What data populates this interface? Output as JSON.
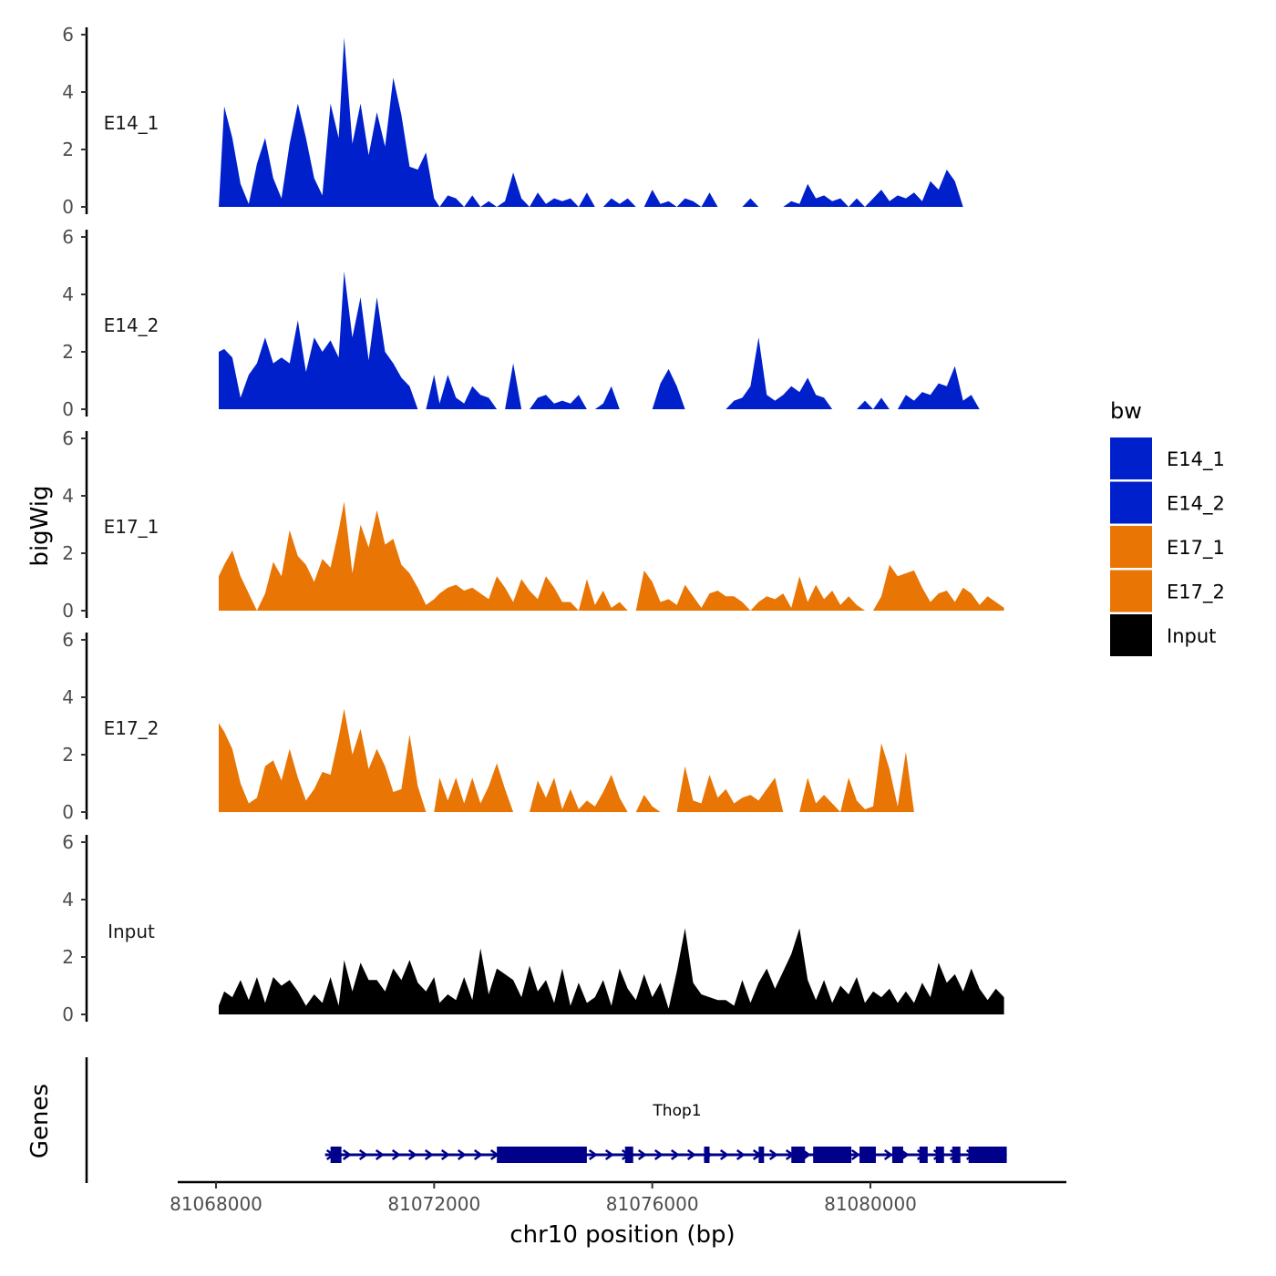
{
  "chart_data": {
    "type": "area",
    "chromosome": "chr10",
    "xlabel": "chr10 position (bp)",
    "ylabel": "bigWig",
    "genes_axis_label": "Genes",
    "xlim": [
      81067700,
      81083600
    ],
    "x_ticks": [
      81068000,
      81072000,
      81076000,
      81080000
    ],
    "x_tick_labels": [
      "81068000",
      "81072000",
      "81076000",
      "81080000"
    ],
    "ylim": [
      0,
      6
    ],
    "y_ticks": [
      0,
      2,
      4,
      6
    ],
    "y_tick_labels": [
      "0",
      "2",
      "4",
      "6"
    ],
    "legend": {
      "title": "bw",
      "entries": [
        {
          "label": "E14_1",
          "color": "#0020CC"
        },
        {
          "label": "E14_2",
          "color": "#0020CC"
        },
        {
          "label": "E17_1",
          "color": "#E87504"
        },
        {
          "label": "E17_2",
          "color": "#E87504"
        },
        {
          "label": "Input",
          "color": "#000000"
        }
      ]
    },
    "series": [
      {
        "name": "E14_1",
        "color": "#0020CC",
        "x": [
          81068050,
          81068150,
          81068300,
          81068450,
          81068600,
          81068750,
          81068900,
          81069050,
          81069200,
          81069350,
          81069500,
          81069650,
          81069800,
          81069950,
          81070100,
          81070250,
          81070350,
          81070500,
          81070650,
          81070800,
          81070950,
          81071100,
          81071250,
          81071400,
          81071550,
          81071700,
          81071850,
          81072000,
          81072100,
          81072250,
          81072400,
          81072550,
          81072700,
          81072850,
          81073000,
          81073150,
          81073300,
          81073450,
          81073600,
          81073750,
          81073900,
          81074050,
          81074200,
          81074350,
          81074500,
          81074650,
          81074800,
          81074950,
          81075100,
          81075250,
          81075400,
          81075550,
          81075700,
          81075850,
          81076000,
          81076150,
          81076300,
          81076450,
          81076600,
          81076750,
          81076900,
          81077050,
          81077200,
          81077350,
          81077500,
          81077650,
          81077800,
          81077950,
          81078100,
          81078250,
          81078400,
          81078550,
          81078700,
          81078850,
          81079000,
          81079150,
          81079300,
          81079450,
          81079600,
          81079750,
          81079900,
          81080050,
          81080200,
          81080350,
          81080500,
          81080650,
          81080800,
          81080950,
          81081100,
          81081250,
          81081400,
          81081550,
          81081700,
          81081850,
          81082000,
          81082150,
          81082300,
          81082450
        ],
        "y": [
          0,
          3.5,
          2.4,
          0.8,
          0.1,
          1.5,
          2.4,
          1.0,
          0.3,
          2.2,
          3.6,
          2.4,
          1.0,
          0.4,
          3.6,
          2.4,
          5.9,
          2.2,
          3.6,
          1.8,
          3.3,
          2.1,
          4.5,
          3.2,
          1.4,
          1.3,
          1.9,
          0.3,
          0,
          0.4,
          0.3,
          0,
          0.4,
          0,
          0.2,
          0,
          0.2,
          1.2,
          0.3,
          0,
          0.5,
          0.1,
          0.3,
          0.2,
          0.3,
          0,
          0.5,
          0,
          0,
          0.3,
          0.1,
          0.3,
          0,
          0,
          0.6,
          0.1,
          0.2,
          0,
          0.3,
          0.2,
          0,
          0.5,
          0,
          0,
          0,
          0,
          0.3,
          0,
          0,
          0,
          0,
          0.2,
          0.1,
          0.8,
          0.3,
          0.4,
          0.2,
          0.3,
          0,
          0.3,
          0,
          0.3,
          0.6,
          0.2,
          0.4,
          0.3,
          0.5,
          0.2,
          0.9,
          0.6,
          1.3,
          0.9,
          0,
          0,
          0,
          0,
          0,
          0
        ]
      },
      {
        "name": "E14_2",
        "color": "#0020CC",
        "x": [
          81068050,
          81068150,
          81068300,
          81068450,
          81068600,
          81068750,
          81068900,
          81069050,
          81069200,
          81069350,
          81069500,
          81069650,
          81069800,
          81069950,
          81070100,
          81070250,
          81070350,
          81070500,
          81070650,
          81070800,
          81070950,
          81071100,
          81071250,
          81071400,
          81071550,
          81071700,
          81071850,
          81072000,
          81072100,
          81072250,
          81072400,
          81072550,
          81072700,
          81072850,
          81073000,
          81073150,
          81073300,
          81073450,
          81073600,
          81073750,
          81073900,
          81074050,
          81074200,
          81074350,
          81074500,
          81074650,
          81074800,
          81074950,
          81075100,
          81075250,
          81075400,
          81075550,
          81075700,
          81075850,
          81076000,
          81076150,
          81076300,
          81076450,
          81076600,
          81076750,
          81076900,
          81077050,
          81077200,
          81077350,
          81077500,
          81077650,
          81077800,
          81077950,
          81078100,
          81078250,
          81078400,
          81078550,
          81078700,
          81078850,
          81079000,
          81079150,
          81079300,
          81079450,
          81079600,
          81079750,
          81079900,
          81080050,
          81080200,
          81080350,
          81080500,
          81080650,
          81080800,
          81080950,
          81081100,
          81081250,
          81081400,
          81081550,
          81081700,
          81081850,
          81082000,
          81082150,
          81082300,
          81082450
        ],
        "y": [
          2.0,
          2.1,
          1.8,
          0.4,
          1.2,
          1.6,
          2.5,
          1.6,
          1.8,
          1.6,
          3.1,
          1.3,
          2.5,
          2.0,
          2.4,
          1.8,
          4.8,
          2.5,
          3.9,
          1.7,
          3.9,
          2.0,
          1.6,
          1.1,
          0.8,
          0,
          0,
          1.2,
          0.2,
          1.2,
          0.4,
          0.2,
          0.8,
          0.5,
          0.4,
          0,
          0,
          1.6,
          0,
          0,
          0.4,
          0.5,
          0.2,
          0.3,
          0.2,
          0.5,
          0,
          0,
          0.2,
          0.8,
          0,
          0,
          0,
          0,
          0,
          0.9,
          1.4,
          0.8,
          0,
          0,
          0,
          0,
          0,
          0,
          0.3,
          0.4,
          0.8,
          2.5,
          0.5,
          0.3,
          0.5,
          0.8,
          0.6,
          1.1,
          0.5,
          0.4,
          0,
          0,
          0,
          0,
          0.3,
          0,
          0.4,
          0,
          0,
          0.5,
          0.3,
          0.6,
          0.5,
          0.9,
          0.8,
          1.5,
          0.3,
          0.5,
          0,
          0,
          0,
          0
        ]
      },
      {
        "name": "E17_1",
        "color": "#E87504",
        "x": [
          81068050,
          81068150,
          81068300,
          81068450,
          81068600,
          81068750,
          81068900,
          81069050,
          81069200,
          81069350,
          81069500,
          81069650,
          81069800,
          81069950,
          81070100,
          81070250,
          81070350,
          81070500,
          81070650,
          81070800,
          81070950,
          81071100,
          81071250,
          81071400,
          81071550,
          81071700,
          81071850,
          81072000,
          81072100,
          81072250,
          81072400,
          81072550,
          81072700,
          81072850,
          81073000,
          81073150,
          81073300,
          81073450,
          81073600,
          81073750,
          81073900,
          81074050,
          81074200,
          81074350,
          81074500,
          81074650,
          81074800,
          81074950,
          81075100,
          81075250,
          81075400,
          81075550,
          81075700,
          81075850,
          81076000,
          81076150,
          81076300,
          81076450,
          81076600,
          81076750,
          81076900,
          81077050,
          81077200,
          81077350,
          81077500,
          81077650,
          81077800,
          81077950,
          81078100,
          81078250,
          81078400,
          81078550,
          81078700,
          81078850,
          81079000,
          81079150,
          81079300,
          81079450,
          81079600,
          81079750,
          81079900,
          81080050,
          81080200,
          81080350,
          81080500,
          81080650,
          81080800,
          81080950,
          81081100,
          81081250,
          81081400,
          81081550,
          81081700,
          81081850,
          81082000,
          81082150,
          81082300,
          81082450
        ],
        "y": [
          1.2,
          1.6,
          2.1,
          1.2,
          0.6,
          0,
          0.6,
          1.7,
          1.2,
          2.8,
          1.9,
          1.6,
          1.0,
          1.8,
          1.5,
          2.8,
          3.8,
          1.3,
          3.0,
          2.2,
          3.5,
          2.3,
          2.5,
          1.6,
          1.3,
          0.8,
          0.2,
          0.4,
          0.6,
          0.8,
          0.9,
          0.7,
          0.8,
          0.6,
          0.4,
          1.2,
          0.8,
          0.3,
          1.1,
          0.7,
          0.4,
          1.2,
          0.8,
          0.3,
          0.3,
          0,
          1.1,
          0.2,
          0.7,
          0.1,
          0.3,
          0,
          0,
          1.4,
          1.0,
          0.3,
          0.4,
          0.2,
          0.9,
          0.5,
          0.1,
          0.6,
          0.7,
          0.5,
          0.5,
          0.3,
          0,
          0.3,
          0.5,
          0.4,
          0.6,
          0.1,
          1.2,
          0.3,
          0.9,
          0.4,
          0.7,
          0.2,
          0.5,
          0.2,
          0,
          0,
          0.5,
          1.6,
          1.2,
          1.3,
          1.4,
          0.8,
          0.3,
          0.6,
          0.7,
          0.3,
          0.8,
          0.6,
          0.2,
          0.5,
          0.3,
          0.1
        ]
      },
      {
        "name": "E17_2",
        "color": "#E87504",
        "x": [
          81068050,
          81068150,
          81068300,
          81068450,
          81068600,
          81068750,
          81068900,
          81069050,
          81069200,
          81069350,
          81069500,
          81069650,
          81069800,
          81069950,
          81070100,
          81070250,
          81070350,
          81070500,
          81070650,
          81070800,
          81070950,
          81071100,
          81071250,
          81071400,
          81071550,
          81071700,
          81071850,
          81072000,
          81072100,
          81072250,
          81072400,
          81072550,
          81072700,
          81072850,
          81073000,
          81073150,
          81073300,
          81073450,
          81073600,
          81073750,
          81073900,
          81074050,
          81074200,
          81074350,
          81074500,
          81074650,
          81074800,
          81074950,
          81075100,
          81075250,
          81075400,
          81075550,
          81075700,
          81075850,
          81076000,
          81076150,
          81076300,
          81076450,
          81076600,
          81076750,
          81076900,
          81077050,
          81077200,
          81077350,
          81077500,
          81077650,
          81077800,
          81077950,
          81078100,
          81078250,
          81078400,
          81078550,
          81078700,
          81078850,
          81079000,
          81079150,
          81079300,
          81079450,
          81079600,
          81079750,
          81079900,
          81080050,
          81080200,
          81080350,
          81080500,
          81080650,
          81080800,
          81080950,
          81081100,
          81081250,
          81081400,
          81081550,
          81081700,
          81081850,
          81082000,
          81082150,
          81082300,
          81082450
        ],
        "y": [
          3.1,
          2.8,
          2.2,
          1.0,
          0.3,
          0.5,
          1.6,
          1.8,
          1.1,
          2.2,
          1.2,
          0.4,
          0.8,
          1.4,
          1.3,
          2.6,
          3.6,
          2.0,
          2.9,
          1.5,
          2.2,
          1.6,
          0.7,
          0.8,
          2.7,
          0.9,
          0,
          0,
          1.2,
          0.4,
          1.2,
          0.3,
          1.2,
          0.3,
          0.9,
          1.7,
          0.8,
          0,
          0,
          0,
          1.1,
          0.5,
          1.2,
          0.1,
          0.8,
          0.1,
          0.4,
          0.2,
          0.7,
          1.3,
          0.5,
          0,
          0,
          0.6,
          0.2,
          0,
          0,
          0,
          1.6,
          0.4,
          0.3,
          1.3,
          0.5,
          0.8,
          0.3,
          0.5,
          0.6,
          0.4,
          0.8,
          1.2,
          0,
          0,
          0,
          1.2,
          0.3,
          0.6,
          0.3,
          0,
          1.2,
          0.4,
          0.1,
          0.2,
          2.4,
          1.5,
          0.2,
          2.1,
          0,
          0,
          0,
          0,
          0,
          0,
          0,
          0,
          0,
          0,
          0,
          0
        ]
      },
      {
        "name": "Input",
        "color": "#000000",
        "x": [
          81068050,
          81068150,
          81068300,
          81068450,
          81068600,
          81068750,
          81068900,
          81069050,
          81069200,
          81069350,
          81069500,
          81069650,
          81069800,
          81069950,
          81070100,
          81070250,
          81070350,
          81070500,
          81070650,
          81070800,
          81070950,
          81071100,
          81071250,
          81071400,
          81071550,
          81071700,
          81071850,
          81072000,
          81072100,
          81072250,
          81072400,
          81072550,
          81072700,
          81072850,
          81073000,
          81073150,
          81073300,
          81073450,
          81073600,
          81073750,
          81073900,
          81074050,
          81074200,
          81074350,
          81074500,
          81074650,
          81074800,
          81074950,
          81075100,
          81075250,
          81075400,
          81075550,
          81075700,
          81075850,
          81076000,
          81076150,
          81076300,
          81076450,
          81076600,
          81076750,
          81076900,
          81077050,
          81077200,
          81077350,
          81077500,
          81077650,
          81077800,
          81077950,
          81078100,
          81078250,
          81078400,
          81078550,
          81078700,
          81078850,
          81079000,
          81079150,
          81079300,
          81079450,
          81079600,
          81079750,
          81079900,
          81080050,
          81080200,
          81080350,
          81080500,
          81080650,
          81080800,
          81080950,
          81081100,
          81081250,
          81081400,
          81081550,
          81081700,
          81081850,
          81082000,
          81082150,
          81082300,
          81082450
        ],
        "y": [
          0.3,
          0.8,
          0.6,
          1.2,
          0.5,
          1.3,
          0.4,
          1.3,
          1.0,
          1.2,
          0.8,
          0.3,
          0.7,
          0.4,
          1.3,
          0.3,
          1.9,
          0.8,
          1.8,
          1.2,
          1.2,
          0.8,
          1.6,
          1.2,
          1.9,
          1.1,
          0.8,
          1.3,
          0.4,
          0.7,
          0.5,
          1.3,
          0.5,
          2.3,
          0.7,
          1.6,
          1.4,
          1.2,
          0.6,
          1.7,
          0.8,
          1.2,
          0.4,
          1.6,
          0.3,
          1.1,
          0.4,
          0.6,
          1.2,
          0.3,
          1.6,
          0.9,
          0.5,
          1.4,
          0.6,
          1.1,
          0.2,
          1.5,
          3.0,
          1.1,
          0.7,
          0.6,
          0.5,
          0.5,
          0.3,
          1.2,
          0.4,
          1.1,
          1.6,
          0.9,
          1.5,
          2.1,
          3.0,
          1.2,
          0.5,
          1.2,
          0.4,
          1.0,
          0.7,
          1.3,
          0.4,
          0.8,
          0.6,
          0.9,
          0.4,
          0.8,
          0.4,
          1.1,
          0.6,
          1.8,
          1.1,
          1.4,
          0.8,
          1.6,
          0.9,
          0.5,
          0.9,
          0.6
        ]
      }
    ],
    "genes": [
      {
        "name": "Thop1",
        "strand": "+",
        "start": 81070000,
        "end": 81082500,
        "exons": [
          [
            81070100,
            81070300
          ],
          [
            81073150,
            81074800
          ],
          [
            81075500,
            81075650
          ],
          [
            81076950,
            81077050
          ],
          [
            81077950,
            81078050
          ],
          [
            81078550,
            81078800
          ],
          [
            81078950,
            81079650
          ],
          [
            81079800,
            81080100
          ],
          [
            81080400,
            81080600
          ],
          [
            81080900,
            81081050
          ],
          [
            81081200,
            81081350
          ],
          [
            81081500,
            81081650
          ],
          [
            81081800,
            81082500
          ]
        ]
      }
    ]
  }
}
